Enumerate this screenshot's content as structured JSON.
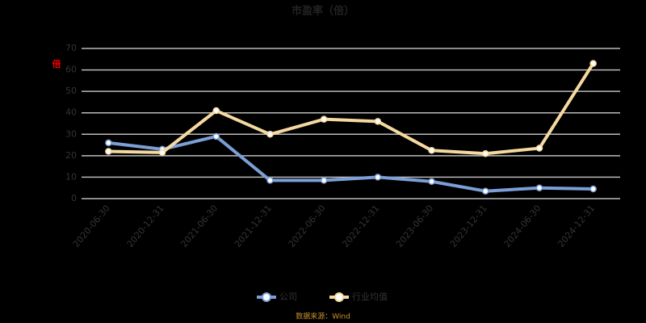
{
  "chart_data": {
    "type": "line",
    "title": "市盈率（倍）",
    "y_label": "倍",
    "source": "数据来源：Wind",
    "categories": [
      "2020-06-30",
      "2020-12-31",
      "2021-06-30",
      "2021-12-31",
      "2022-06-30",
      "2022-12-31",
      "2023-06-30",
      "2023-12-31",
      "2024-06-30",
      "2024-12-31"
    ],
    "series": [
      {
        "name": "公司",
        "color": "#7b9fd6",
        "values": [
          26,
          23,
          29,
          8.5,
          8.5,
          10,
          8,
          3.5,
          5,
          4.5
        ]
      },
      {
        "name": "行业均值",
        "color": "#f5d9a0",
        "values": [
          22,
          21.5,
          41,
          30,
          37,
          36,
          22.5,
          21,
          23.5,
          63
        ]
      }
    ],
    "ylim": [
      0,
      70
    ],
    "yticks": [
      0,
      10,
      20,
      30,
      40,
      50,
      60,
      70
    ],
    "grid": true
  }
}
